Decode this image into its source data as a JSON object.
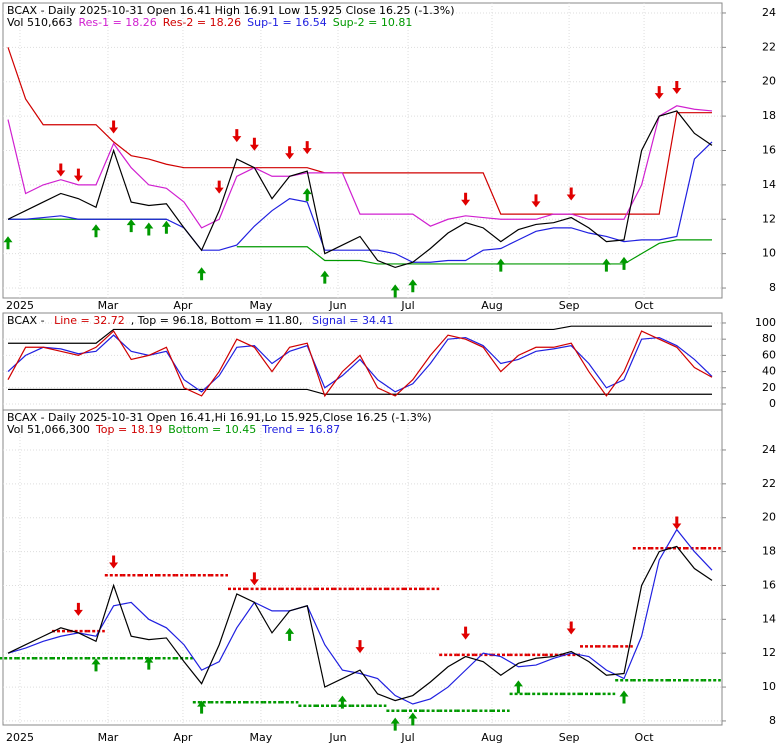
{
  "chart_data": [
    {
      "type": "line",
      "header": [
        [
          {
            "text": "BCAX - Daily 2025-10-31 Open 16.41  High 16.91  Low 15.925  Close 16.25 (-1.3%)",
            "color": "#000000"
          }
        ],
        [
          {
            "text": "Vol 510,663",
            "color": "#000000"
          },
          {
            "text": "Res-1 = 18.26",
            "color": "#d020d0"
          },
          {
            "text": "Res-2 = 18.26",
            "color": "#d00000"
          },
          {
            "text": "Sup-1 = 16.54",
            "color": "#2020e0"
          },
          {
            "text": "Sup-2 = 10.81",
            "color": "#009900"
          }
        ]
      ],
      "ylim": [
        7.42,
        24.58
      ],
      "yticks": [
        8,
        10,
        12,
        14,
        16,
        18,
        20,
        22,
        24
      ],
      "grid": true,
      "xticks": [
        {
          "value": 0.68,
          "label": "2025"
        },
        {
          "value": 5.68,
          "label": "Mar"
        },
        {
          "value": 9.94,
          "label": "Apr"
        },
        {
          "value": 14.37,
          "label": "May"
        },
        {
          "value": 18.75,
          "label": "Jun"
        },
        {
          "value": 22.73,
          "label": "Jul"
        },
        {
          "value": 27.5,
          "label": "Aug"
        },
        {
          "value": 31.88,
          "label": "Sep"
        },
        {
          "value": 36.14,
          "label": "Oct"
        }
      ],
      "series": [
        {
          "color": "#d00000",
          "style": "line",
          "values": [
            22,
            19,
            17.5,
            17.5,
            17.5,
            17.5,
            16.5,
            15.7,
            15.5,
            15.2,
            15,
            15,
            15,
            15,
            15,
            15,
            15,
            15,
            14.7,
            14.7,
            14.7,
            14.7,
            14.7,
            14.7,
            14.7,
            14.7,
            14.7,
            14.7,
            12.3,
            12.3,
            12.3,
            12.3,
            12.3,
            12.3,
            12.3,
            12.3,
            12.3,
            12.3,
            18.2,
            18.2,
            18.2
          ]
        },
        {
          "color": "#d020d0",
          "style": "line",
          "values": [
            17.8,
            13.5,
            14,
            14.3,
            14,
            14,
            16.4,
            15,
            14,
            13.8,
            13,
            11.5,
            12,
            14.5,
            15,
            14.5,
            14.5,
            14.7,
            14.7,
            14.7,
            12.3,
            12.3,
            12.3,
            12.3,
            11.6,
            12,
            12.2,
            12.1,
            12,
            12,
            12,
            12.3,
            12.3,
            12,
            12,
            12,
            14,
            18,
            18.6,
            18.4,
            18.3
          ]
        },
        {
          "color": "#009900",
          "style": "line",
          "values": [
            12,
            12,
            12,
            12,
            12,
            12,
            12,
            12,
            12,
            12,
            null,
            null,
            null,
            10.4,
            10.4,
            10.4,
            10.4,
            10.4,
            9.6,
            9.6,
            9.6,
            9.4,
            9.4,
            9.4,
            9.4,
            9.4,
            9.4,
            9.4,
            9.4,
            9.4,
            9.4,
            9.4,
            9.4,
            9.4,
            9.4,
            9.4,
            10,
            10.6,
            10.8,
            10.8,
            10.8
          ]
        },
        {
          "color": "#2020e0",
          "style": "line",
          "values": [
            12,
            12,
            12.1,
            12.2,
            12,
            12,
            12,
            12,
            12,
            12,
            11.5,
            10.2,
            10.2,
            10.5,
            11.6,
            12.5,
            13.2,
            13,
            10.2,
            10.2,
            10.2,
            10.2,
            10,
            9.5,
            9.5,
            9.6,
            9.6,
            10.2,
            10.3,
            10.8,
            11.3,
            11.5,
            11.5,
            11.2,
            11,
            10.7,
            10.8,
            10.8,
            11,
            15.5,
            16.5
          ]
        },
        {
          "color": "#000000",
          "style": "line",
          "values": [
            12,
            12.5,
            13,
            13.5,
            13.2,
            12.7,
            16,
            13,
            12.8,
            12.9,
            11.5,
            10.2,
            12.5,
            15.5,
            15,
            13.2,
            14.5,
            14.8,
            10,
            10.5,
            11,
            9.6,
            9.2,
            9.5,
            10.3,
            11.2,
            11.8,
            11.5,
            10.7,
            11.4,
            11.7,
            11.8,
            12.1,
            11.5,
            10.7,
            10.8,
            16,
            18,
            18.3,
            17,
            16.3
          ]
        }
      ],
      "price_series": 4,
      "sell": [
        3,
        4,
        6,
        12,
        13,
        14,
        16,
        17,
        26,
        30,
        32,
        37,
        38
      ],
      "buy": [
        0,
        5,
        7,
        8,
        9,
        11,
        17,
        18,
        22,
        23,
        28,
        34,
        35
      ]
    },
    {
      "type": "line",
      "header": [
        [
          {
            "text": "BCAX - ",
            "color": "#000000"
          },
          {
            "text": "Line = 32.72",
            "color": "#d00000"
          },
          {
            "text": ", Top = 96.18, Bottom = 11.80, ",
            "color": "#000000"
          },
          {
            "text": "Signal = 34.41",
            "color": "#2020e0"
          }
        ]
      ],
      "ylim": [
        -7.4,
        112.3
      ],
      "yticks": [
        0,
        20,
        40,
        60,
        80,
        100
      ],
      "grid": true,
      "series": [
        {
          "color": "#000000",
          "style": "line",
          "values": [
            75,
            75,
            75,
            75,
            75,
            75,
            92,
            92,
            92,
            92,
            92,
            92,
            92,
            92,
            92,
            92,
            92,
            92,
            92,
            92,
            92,
            92,
            92,
            92,
            92,
            92,
            92,
            92,
            92,
            92,
            92,
            92,
            96,
            96,
            96,
            96,
            96,
            96,
            96,
            96,
            96
          ]
        },
        {
          "color": "#000000",
          "style": "line",
          "values": [
            18,
            18,
            18,
            18,
            18,
            18,
            18,
            18,
            18,
            18,
            18,
            18,
            18,
            18,
            18,
            18,
            18,
            18,
            12,
            12,
            12,
            12,
            12,
            12,
            12,
            12,
            12,
            12,
            12,
            12,
            12,
            12,
            12,
            12,
            12,
            12,
            12,
            12,
            12,
            12,
            12
          ]
        },
        {
          "color": "#2020e0",
          "style": "line",
          "values": [
            40,
            60,
            70,
            68,
            62,
            65,
            85,
            65,
            60,
            65,
            30,
            15,
            35,
            70,
            72,
            50,
            65,
            72,
            20,
            35,
            55,
            30,
            15,
            25,
            50,
            80,
            82,
            72,
            50,
            55,
            65,
            68,
            72,
            50,
            20,
            30,
            80,
            82,
            72,
            55,
            34
          ]
        },
        {
          "color": "#d00000",
          "style": "line",
          "values": [
            30,
            70,
            70,
            65,
            60,
            70,
            90,
            55,
            60,
            70,
            20,
            10,
            40,
            80,
            70,
            40,
            70,
            75,
            10,
            40,
            60,
            20,
            10,
            30,
            60,
            85,
            80,
            70,
            40,
            60,
            70,
            70,
            75,
            40,
            10,
            40,
            90,
            80,
            70,
            45,
            33
          ]
        }
      ]
    },
    {
      "type": "line",
      "header": [
        [
          {
            "text": "BCAX - Daily 2025-10-31 Open 16.41,Hi 16.91,Lo 15.925,Close 16.25 (-1.3%)",
            "color": "#000000"
          }
        ],
        [
          {
            "text": "Vol 51,066,300",
            "color": "#000000"
          },
          {
            "text": "Top = 18.19",
            "color": "#d00000"
          },
          {
            "text": "Bottom = 10.45",
            "color": "#009900"
          },
          {
            "text": "Trend = 16.87",
            "color": "#2020e0"
          }
        ]
      ],
      "ylim": [
        7.76,
        26.36
      ],
      "yticks": [
        8,
        10,
        12,
        14,
        16,
        18,
        20,
        22,
        24
      ],
      "grid": true,
      "xticks": [
        {
          "value": 0.68,
          "label": "2025"
        },
        {
          "value": 5.68,
          "label": "Mar"
        },
        {
          "value": 9.94,
          "label": "Apr"
        },
        {
          "value": 14.37,
          "label": "May"
        },
        {
          "value": 18.75,
          "label": "Jun"
        },
        {
          "value": 22.73,
          "label": "Jul"
        },
        {
          "value": 27.5,
          "label": "Aug"
        },
        {
          "value": 31.88,
          "label": "Sep"
        },
        {
          "value": 36.14,
          "label": "Oct"
        }
      ],
      "series": [
        {
          "color": "#e00000",
          "style": "steps",
          "values": [
            null,
            null,
            null,
            13.3,
            13.3,
            13.3,
            16.6,
            16.6,
            16.6,
            16.6,
            16.6,
            16.6,
            16.6,
            15.8,
            15.8,
            15.8,
            15.8,
            15.8,
            15.8,
            15.8,
            15.8,
            15.8,
            15.8,
            15.8,
            15.8,
            11.9,
            11.9,
            11.9,
            11.9,
            11.9,
            11.9,
            11.9,
            11.9,
            12.4,
            12.4,
            12.4,
            18.2,
            18.2,
            18.2,
            18.2,
            18.2
          ]
        },
        {
          "color": "#009900",
          "style": "steps",
          "values": [
            11.7,
            11.7,
            11.7,
            11.7,
            11.7,
            11.7,
            11.7,
            11.7,
            11.7,
            11.7,
            11.7,
            9.1,
            9.1,
            9.1,
            9.1,
            9.1,
            9.1,
            8.9,
            8.9,
            8.9,
            8.9,
            8.9,
            8.6,
            8.6,
            8.6,
            8.6,
            8.6,
            8.6,
            8.6,
            9.6,
            9.6,
            9.6,
            9.6,
            9.6,
            9.6,
            10.4,
            10.4,
            10.4,
            10.4,
            10.4,
            10.4
          ]
        },
        {
          "color": "#2020e0",
          "style": "line",
          "values": [
            12,
            12.3,
            12.7,
            13,
            13.2,
            13,
            14.8,
            15,
            14,
            13.5,
            12.5,
            11,
            11.5,
            13.5,
            15,
            14.5,
            14.5,
            14.8,
            12.5,
            11,
            10.8,
            10.5,
            9.5,
            9,
            9.3,
            10,
            11,
            12,
            11.8,
            11.2,
            11.3,
            11.7,
            12,
            11.8,
            11,
            10.5,
            13,
            17.5,
            19.3,
            18,
            16.9
          ]
        },
        {
          "color": "#000000",
          "style": "line",
          "values": [
            12,
            12.5,
            13,
            13.5,
            13.2,
            12.7,
            16,
            13,
            12.8,
            12.9,
            11.5,
            10.2,
            12.5,
            15.5,
            15,
            13.2,
            14.5,
            14.8,
            10,
            10.5,
            11,
            9.6,
            9.2,
            9.5,
            10.3,
            11.2,
            11.8,
            11.5,
            10.7,
            11.4,
            11.7,
            11.8,
            12.1,
            11.5,
            10.7,
            10.8,
            16,
            18,
            18.3,
            17,
            16.3
          ]
        }
      ],
      "price_series": 3,
      "sell": [
        4,
        6,
        14,
        20,
        26,
        32,
        38
      ],
      "buy": [
        5,
        8,
        11,
        16,
        19,
        22,
        23,
        29,
        35
      ]
    }
  ]
}
